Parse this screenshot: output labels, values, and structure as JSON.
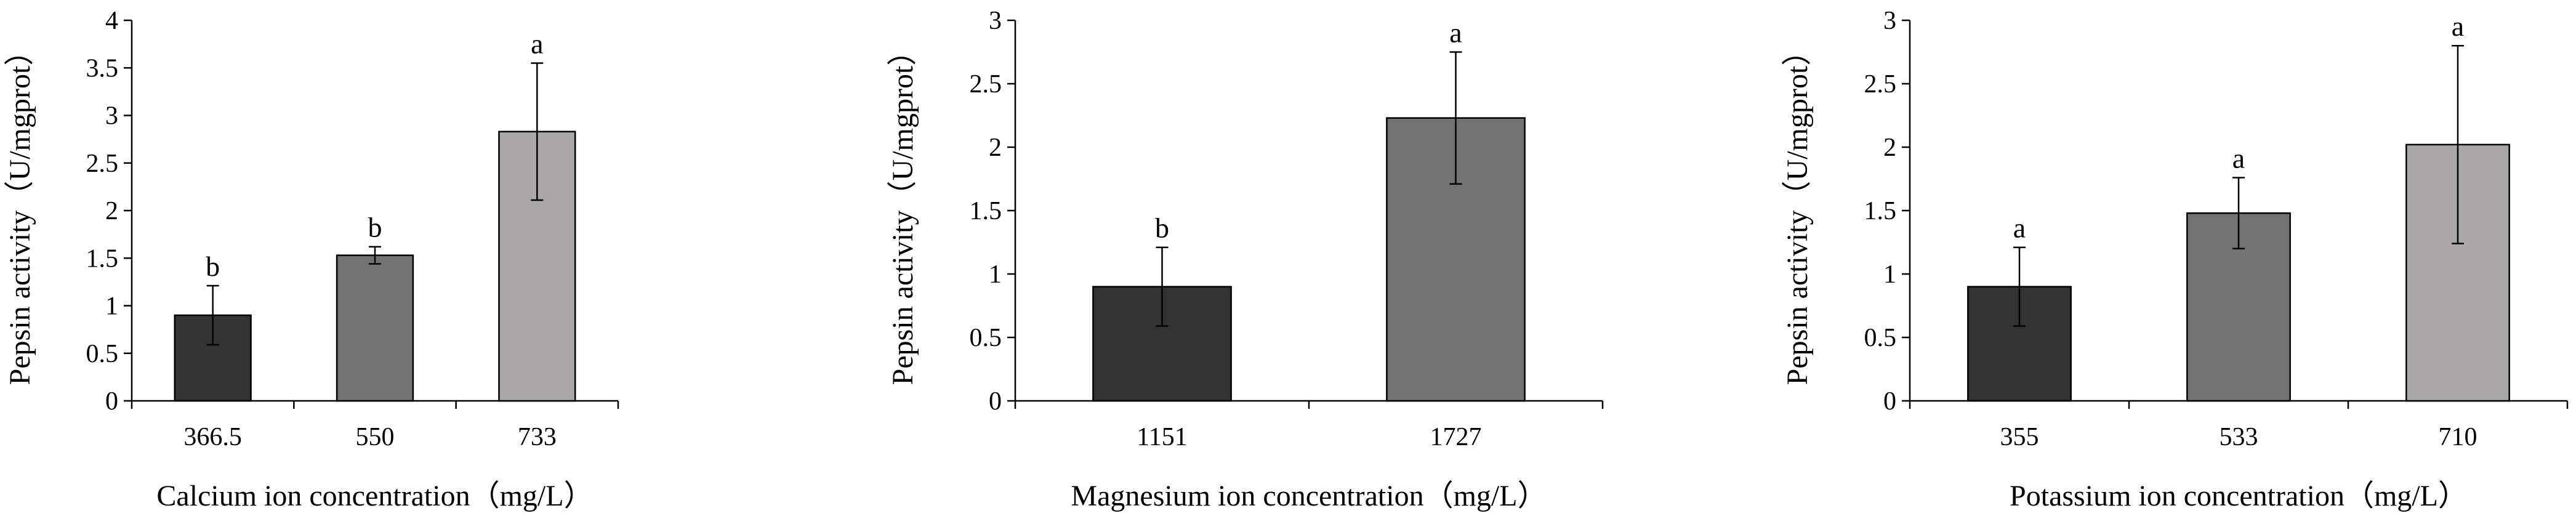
{
  "chart_data": [
    {
      "type": "bar",
      "ylabel": "Pepsin activity（U/mgprot）",
      "xlabel": "Calcium ion concentration（mg/L）",
      "categories": [
        "366.5",
        "550",
        "733"
      ],
      "values": [
        0.9,
        1.53,
        2.83
      ],
      "errors": [
        0.31,
        0.09,
        0.72
      ],
      "significance": [
        "b",
        "b",
        "a"
      ],
      "colors": [
        "#333333",
        "#727272",
        "#a9a7a8"
      ],
      "ylim": [
        0,
        4
      ],
      "yticks": [
        "0",
        "0.5",
        "1",
        "1.5",
        "2",
        "2.5",
        "3",
        "3.5",
        "4"
      ],
      "grid": false,
      "legend": "none"
    },
    {
      "type": "bar",
      "ylabel": "Pepsin activity（U/mgprot）",
      "xlabel": "Magnesium ion concentration（mg/L）",
      "categories": [
        "1151",
        "1727"
      ],
      "values": [
        0.9,
        2.23
      ],
      "errors": [
        0.31,
        0.52
      ],
      "significance": [
        "b",
        "a"
      ],
      "colors": [
        "#333333",
        "#727272"
      ],
      "ylim": [
        0,
        3
      ],
      "yticks": [
        "0",
        "0.5",
        "1",
        "1.5",
        "2",
        "2.5",
        "3"
      ],
      "grid": false,
      "legend": "none"
    },
    {
      "type": "bar",
      "ylabel": "Pepsin activity（U/mgprot）",
      "xlabel": "Potassium ion concentration（mg/L）",
      "categories": [
        "355",
        "533",
        "710"
      ],
      "values": [
        0.9,
        1.48,
        2.02
      ],
      "errors": [
        0.31,
        0.28,
        0.78
      ],
      "significance": [
        "a",
        "a",
        "a"
      ],
      "colors": [
        "#333333",
        "#727272",
        "#a9a7a8"
      ],
      "ylim": [
        0,
        3
      ],
      "yticks": [
        "0",
        "0.5",
        "1",
        "1.5",
        "2",
        "2.5",
        "3"
      ],
      "grid": false,
      "legend": "none"
    }
  ]
}
